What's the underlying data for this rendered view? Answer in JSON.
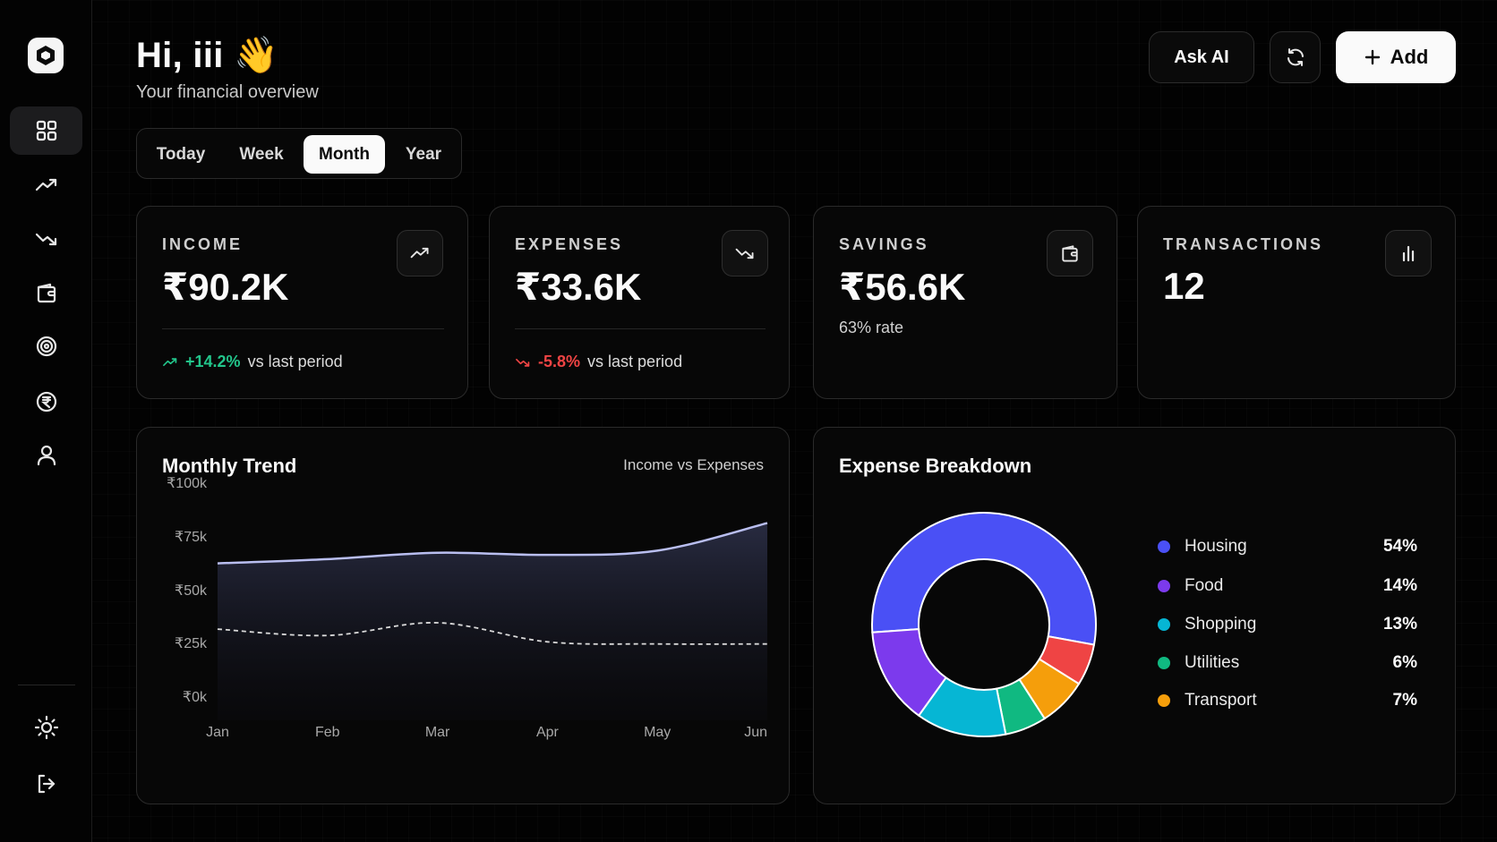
{
  "header": {
    "greeting": "Hi, iii 👋",
    "subtitle": "Your financial overview",
    "ask_ai_label": "Ask AI",
    "add_label": "Add"
  },
  "periods": {
    "items": [
      "Today",
      "Week",
      "Month",
      "Year"
    ],
    "active": "Month"
  },
  "sidebar": {
    "items": [
      "dashboard-icon",
      "trending-up-icon",
      "trending-down-icon",
      "wallet-icon",
      "target-icon",
      "globe-rupee-icon",
      "user-icon"
    ],
    "active": "dashboard-icon",
    "bottom": [
      "settings-sun-icon",
      "logout-icon"
    ]
  },
  "kpis": {
    "income": {
      "label": "INCOME",
      "value": "₹90.2K",
      "change": "+14.2%",
      "change_text": "vs last period"
    },
    "expenses": {
      "label": "EXPENSES",
      "value": "₹33.6K",
      "change": "-5.8%",
      "change_text": "vs last period"
    },
    "savings": {
      "label": "SAVINGS",
      "value": "₹56.6K",
      "sub": "63% rate"
    },
    "transactions": {
      "label": "TRANSACTIONS",
      "value": "12"
    }
  },
  "colors": {
    "positive": "#22c58b",
    "negative": "#ef4444",
    "housing": "#4a50f5",
    "food": "#7c3aed",
    "shopping": "#06b6d4",
    "utilities": "#10b981",
    "transport": "#f59e0b",
    "other": "#ef4444"
  },
  "chart_data": [
    {
      "type": "area",
      "title": "Monthly Trend",
      "subtitle": "Income vs Expenses",
      "x": [
        "Jan",
        "Feb",
        "Mar",
        "Apr",
        "May",
        "Jun"
      ],
      "ylim": [
        0,
        100000
      ],
      "yticks": [
        "₹100k",
        "₹75k",
        "₹50k",
        "₹25k",
        "₹0k"
      ],
      "series": [
        {
          "values": [
            74000,
            76000,
            79000,
            78000,
            80000,
            93000
          ]
        },
        {
          "values": [
            43000,
            40000,
            46000,
            37000,
            36000,
            36000
          ]
        }
      ]
    },
    {
      "type": "pie",
      "title": "Expense Breakdown",
      "labels": [
        "Housing",
        "Food",
        "Shopping",
        "Utilities",
        "Transport"
      ],
      "values": [
        54,
        14,
        13,
        6,
        7
      ],
      "display": [
        "54%",
        "14%",
        "13%",
        "6%",
        "7%"
      ]
    }
  ]
}
